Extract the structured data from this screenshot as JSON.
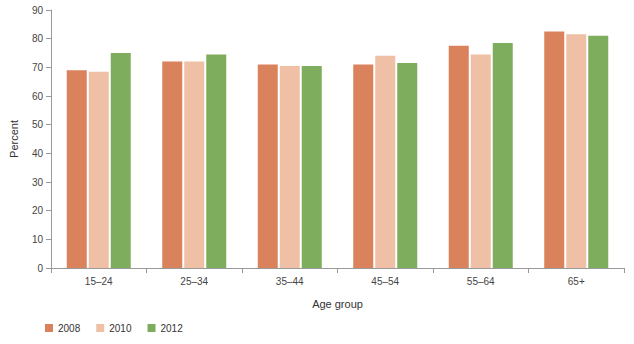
{
  "chart_data": {
    "type": "bar",
    "x_label": "Age group",
    "y_label": "Percent",
    "categories": [
      "15–24",
      "25–34",
      "35–44",
      "45–54",
      "55–64",
      "65+"
    ],
    "series": [
      {
        "name": "2008",
        "color": "#d9825b",
        "values": [
          69,
          72,
          71,
          71,
          77.5,
          82.5
        ]
      },
      {
        "name": "2010",
        "color": "#efc0a6",
        "values": [
          68.5,
          72,
          70.5,
          74,
          74.5,
          81.5
        ]
      },
      {
        "name": "2012",
        "color": "#7fad5e",
        "values": [
          75,
          74.5,
          70.5,
          71.5,
          78.5,
          81
        ]
      }
    ],
    "ylim": [
      0,
      90
    ],
    "yticks": [
      0,
      10,
      20,
      30,
      40,
      50,
      60,
      70,
      80,
      90
    ],
    "grid": false,
    "legend": "bottom-left"
  }
}
